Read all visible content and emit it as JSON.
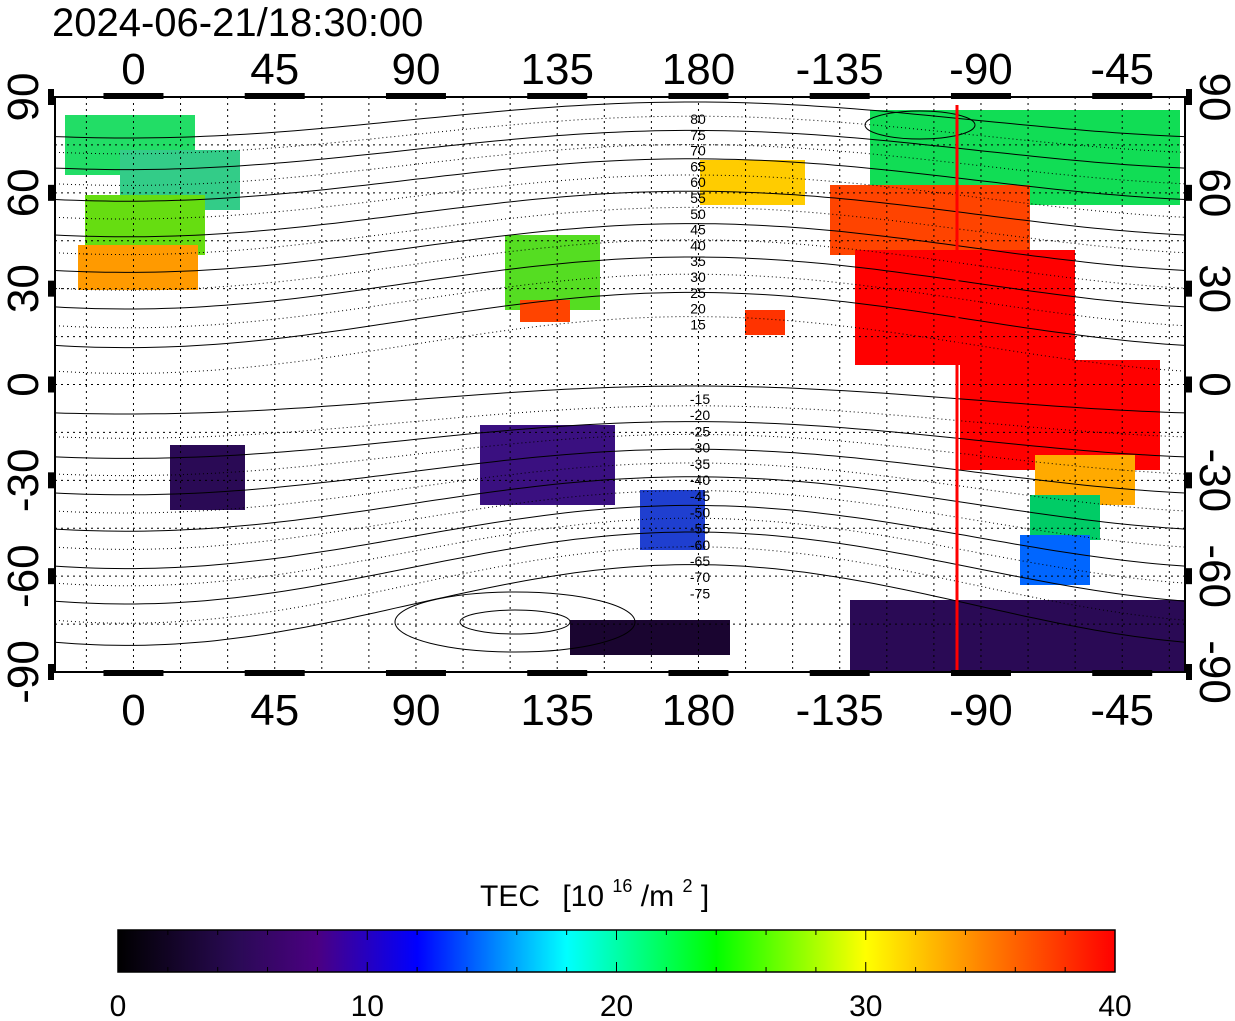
{
  "timestamp": "2024-06-21/18:30:00",
  "axes": {
    "top_lon_labels": [
      "0",
      "45",
      "90",
      "135",
      "180",
      "-135",
      "-90",
      "-45"
    ],
    "bottom_lon_labels": [
      "0",
      "45",
      "90",
      "135",
      "180",
      "-135",
      "-90",
      "-45"
    ],
    "left_lat_labels": [
      "90",
      "60",
      "30",
      "0",
      "-30",
      "-60",
      "-90"
    ],
    "right_lat_labels": [
      "90",
      "60",
      "30",
      "0",
      "-30",
      "-60",
      "-90"
    ]
  },
  "contour_labels": {
    "north": [
      "80",
      "75",
      "70",
      "65",
      "60",
      "55",
      "50",
      "45",
      "40",
      "35",
      "30",
      "25",
      "20",
      "15"
    ],
    "south": [
      "-15",
      "-20",
      "-25",
      "-30",
      "-35",
      "-40",
      "-45",
      "-50",
      "-55",
      "-60",
      "-65",
      "-70",
      "-75"
    ]
  },
  "terminator_longitude": -97,
  "colorbar": {
    "title": "TEC",
    "unit_base": "[10",
    "unit_exp": "16",
    "unit_mid": "/m",
    "unit_exp2": "2",
    "unit_end": "]",
    "tick_labels": [
      "0",
      "10",
      "20",
      "30",
      "40"
    ],
    "min": 0,
    "max": 40,
    "stops": [
      "#000000",
      "#2a0a55",
      "#4b0082",
      "#0000ff",
      "#00ffff",
      "#00ff00",
      "#ffff00",
      "#ff8000",
      "#ff0000"
    ]
  },
  "colors": {
    "terminator": "#ff0000",
    "contour": "#000000",
    "grid": "#000000"
  }
}
